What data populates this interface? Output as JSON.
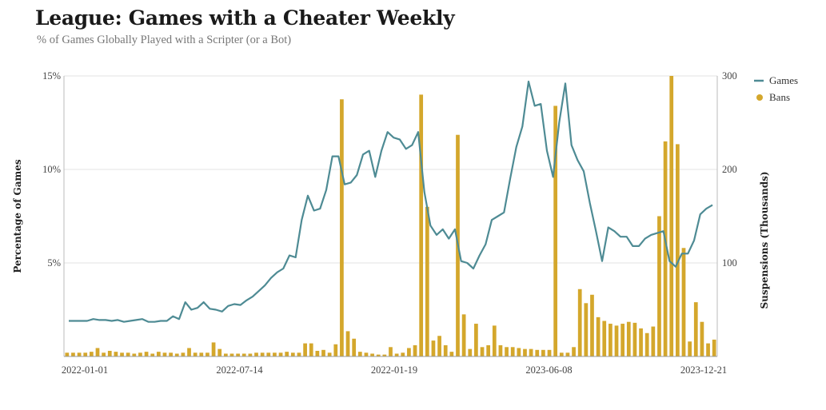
{
  "title": "League: Games with a Cheater Weekly",
  "subtitle": "% of Games Globally Played with a Scripter (or a Bot)",
  "colors": {
    "games": "#4e8b94",
    "bans": "#d4a72c",
    "grid": "#e3e3e3"
  },
  "chart_data": {
    "type": "bar+line",
    "x_tick_labels": [
      "2022-01-01",
      "2022-07-14",
      "2022-01-19",
      "2023-06-08",
      "2023-12-21"
    ],
    "left_axis": {
      "label": "Percentage of Games",
      "ticks": [
        "5%",
        "10%",
        "15%"
      ],
      "range": [
        0,
        15
      ]
    },
    "right_axis": {
      "label": "Suspensions (Thousands)",
      "ticks": [
        "100",
        "200",
        "300"
      ],
      "range": [
        0,
        300
      ]
    },
    "legend": {
      "placement": "top-right",
      "entries": [
        "Games",
        "Bans"
      ]
    },
    "series": [
      {
        "name": "Games",
        "type": "line",
        "values": [
          1.9,
          1.9,
          1.9,
          1.9,
          2.0,
          1.95,
          1.95,
          1.9,
          1.95,
          1.85,
          1.9,
          1.95,
          2.0,
          1.85,
          1.85,
          1.9,
          1.9,
          2.15,
          2.0,
          2.9,
          2.5,
          2.6,
          2.9,
          2.55,
          2.5,
          2.4,
          2.7,
          2.8,
          2.75,
          3.0,
          3.2,
          3.5,
          3.8,
          4.2,
          4.5,
          4.7,
          5.4,
          5.3,
          7.3,
          8.6,
          7.8,
          7.9,
          8.9,
          10.7,
          10.7,
          9.2,
          9.3,
          9.7,
          10.8,
          11.0,
          9.6,
          11.0,
          12.0,
          11.7,
          11.6,
          11.1,
          11.3,
          12.0,
          8.8,
          7.0,
          6.5,
          6.8,
          6.3,
          6.8,
          5.1,
          5.0,
          4.7,
          5.4,
          6.0,
          7.3,
          7.5,
          7.7,
          9.5,
          11.2,
          12.3,
          14.7,
          13.4,
          13.5,
          11.0,
          9.6,
          12.5,
          14.6,
          11.3,
          10.5,
          9.9,
          8.2,
          6.7,
          5.1,
          6.9,
          6.7,
          6.4,
          6.4,
          5.9,
          5.9,
          6.3,
          6.5,
          6.6,
          6.7,
          5.1,
          4.8,
          5.5,
          5.5,
          6.2,
          7.6,
          7.9,
          8.1
        ]
      },
      {
        "name": "Bans",
        "type": "bar",
        "values": [
          4,
          4,
          4,
          4,
          5,
          9,
          4,
          6,
          5,
          4,
          4,
          3,
          4,
          5,
          3,
          5,
          4,
          4,
          3,
          4,
          9,
          4,
          4,
          4,
          15,
          8,
          3,
          3,
          3,
          3,
          3,
          4,
          4,
          4,
          4,
          4,
          5,
          4,
          4,
          14,
          14,
          6,
          7,
          4,
          13,
          275,
          27,
          19,
          5,
          4,
          3,
          2,
          2,
          10,
          3,
          4,
          9,
          12,
          280,
          160,
          17,
          22,
          12,
          5,
          237,
          45,
          8,
          35,
          10,
          12,
          33,
          12,
          10,
          10,
          9,
          8,
          8,
          7,
          7,
          7,
          268,
          4,
          4,
          10,
          72,
          57,
          66,
          42,
          38,
          35,
          33,
          35,
          37,
          36,
          30,
          25,
          32,
          150,
          230,
          300,
          227,
          116,
          16,
          58,
          37,
          14,
          18
        ]
      }
    ]
  }
}
